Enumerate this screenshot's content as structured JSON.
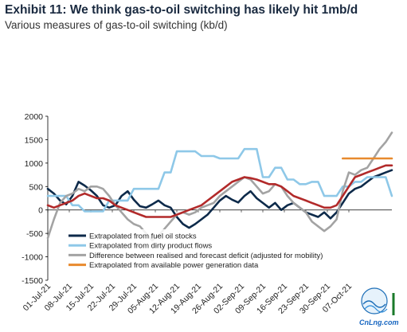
{
  "header": {
    "title": "Exhibit 11: We think gas-to-oil switching has likely hit 1mb/d",
    "subtitle": "Various measures of gas-to-oil switching (kb/d)"
  },
  "watermark": {
    "text": "CnLng.com"
  },
  "colors": {
    "fuel_oil": "#0d2a4a",
    "dirty_product": "#8ec8e8",
    "difference": "#a3a3a3",
    "deficit_red": "#b22a2a",
    "power_gen": "#e88a2e"
  },
  "chart_data": {
    "type": "line",
    "title": "Exhibit 11: We think gas-to-oil switching has likely hit 1mb/d",
    "subtitle": "Various measures of gas-to-oil switching (kb/d)",
    "ylim": [
      -1500,
      2000
    ],
    "yticks": [
      -1500,
      -1000,
      -500,
      0,
      500,
      1000,
      1500,
      2000
    ],
    "xcount": 95,
    "xtick_labels": [
      "01-Jul-21",
      "08-Jul-21",
      "15-Jul-21",
      "22-Jul-21",
      "29-Jul-21",
      "05-Aug-21",
      "12-Aug-21",
      "19-Aug-21",
      "26-Aug-21",
      "02-Sep-21",
      "09-Sep-21",
      "16-Sep-21",
      "23-Sep-21",
      "30-Sep-21",
      "07-Oct-21"
    ],
    "xtick_positions": [
      0,
      7,
      14,
      21,
      28,
      35,
      42,
      49,
      56,
      63,
      70,
      77,
      84,
      91,
      98
    ],
    "series": [
      {
        "name": "Extrapolated from fuel oil stocks",
        "color": "#0d2a4a",
        "points": [
          [
            0,
            450
          ],
          [
            2,
            350
          ],
          [
            4,
            200
          ],
          [
            6,
            120
          ],
          [
            8,
            300
          ],
          [
            10,
            600
          ],
          [
            12,
            520
          ],
          [
            14,
            420
          ],
          [
            16,
            300
          ],
          [
            18,
            100
          ],
          [
            20,
            50
          ],
          [
            22,
            100
          ],
          [
            24,
            300
          ],
          [
            26,
            400
          ],
          [
            28,
            220
          ],
          [
            30,
            80
          ],
          [
            32,
            50
          ],
          [
            34,
            120
          ],
          [
            36,
            200
          ],
          [
            38,
            100
          ],
          [
            40,
            50
          ],
          [
            42,
            -150
          ],
          [
            44,
            -300
          ],
          [
            46,
            -380
          ],
          [
            48,
            -300
          ],
          [
            50,
            -200
          ],
          [
            52,
            -100
          ],
          [
            54,
            50
          ],
          [
            56,
            200
          ],
          [
            58,
            300
          ],
          [
            60,
            220
          ],
          [
            62,
            160
          ],
          [
            64,
            300
          ],
          [
            66,
            400
          ],
          [
            68,
            250
          ],
          [
            70,
            150
          ],
          [
            72,
            50
          ],
          [
            74,
            150
          ],
          [
            76,
            0
          ],
          [
            78,
            100
          ],
          [
            80,
            150
          ],
          [
            82,
            50
          ],
          [
            84,
            -50
          ],
          [
            86,
            -100
          ],
          [
            88,
            -150
          ],
          [
            90,
            -50
          ],
          [
            92,
            -180
          ],
          [
            94,
            -50
          ],
          [
            96,
            150
          ],
          [
            98,
            350
          ],
          [
            100,
            450
          ],
          [
            102,
            500
          ],
          [
            104,
            600
          ],
          [
            106,
            700
          ],
          [
            108,
            750
          ],
          [
            110,
            800
          ],
          [
            112,
            850
          ]
        ]
      },
      {
        "name": "Extrapolated from dirty product flows",
        "color": "#8ec8e8",
        "points": [
          [
            0,
            300
          ],
          [
            6,
            300
          ],
          [
            8,
            100
          ],
          [
            10,
            100
          ],
          [
            12,
            -30
          ],
          [
            18,
            -30
          ],
          [
            20,
            200
          ],
          [
            26,
            200
          ],
          [
            28,
            450
          ],
          [
            36,
            450
          ],
          [
            38,
            800
          ],
          [
            40,
            800
          ],
          [
            42,
            1250
          ],
          [
            48,
            1250
          ],
          [
            50,
            1150
          ],
          [
            54,
            1150
          ],
          [
            56,
            1100
          ],
          [
            62,
            1100
          ],
          [
            64,
            1300
          ],
          [
            68,
            1300
          ],
          [
            70,
            700
          ],
          [
            72,
            700
          ],
          [
            74,
            900
          ],
          [
            76,
            900
          ],
          [
            78,
            650
          ],
          [
            80,
            650
          ],
          [
            82,
            550
          ],
          [
            84,
            550
          ],
          [
            86,
            600
          ],
          [
            88,
            600
          ],
          [
            90,
            300
          ],
          [
            94,
            300
          ],
          [
            96,
            500
          ],
          [
            98,
            500
          ],
          [
            100,
            600
          ],
          [
            102,
            600
          ],
          [
            104,
            700
          ],
          [
            110,
            700
          ],
          [
            112,
            300
          ]
        ]
      },
      {
        "name": "Difference between realised and forecast deficit (adjusted for mobility)",
        "color": "#a3a3a3",
        "points": [
          [
            0,
            -600
          ],
          [
            2,
            -200
          ],
          [
            4,
            150
          ],
          [
            6,
            300
          ],
          [
            8,
            350
          ],
          [
            10,
            450
          ],
          [
            12,
            400
          ],
          [
            14,
            500
          ],
          [
            16,
            500
          ],
          [
            18,
            450
          ],
          [
            20,
            300
          ],
          [
            22,
            100
          ],
          [
            24,
            -50
          ],
          [
            26,
            -200
          ],
          [
            28,
            -300
          ],
          [
            30,
            -350
          ],
          [
            32,
            -500
          ],
          [
            34,
            -650
          ],
          [
            36,
            -550
          ],
          [
            38,
            -400
          ],
          [
            40,
            -250
          ],
          [
            42,
            -100
          ],
          [
            44,
            -50
          ],
          [
            46,
            -100
          ],
          [
            48,
            -50
          ],
          [
            50,
            50
          ],
          [
            52,
            100
          ],
          [
            54,
            150
          ],
          [
            56,
            300
          ],
          [
            58,
            400
          ],
          [
            60,
            500
          ],
          [
            62,
            600
          ],
          [
            64,
            700
          ],
          [
            66,
            650
          ],
          [
            68,
            500
          ],
          [
            70,
            350
          ],
          [
            72,
            400
          ],
          [
            74,
            550
          ],
          [
            76,
            500
          ],
          [
            78,
            300
          ],
          [
            80,
            150
          ],
          [
            82,
            50
          ],
          [
            84,
            -50
          ],
          [
            86,
            -250
          ],
          [
            88,
            -350
          ],
          [
            90,
            -450
          ],
          [
            92,
            -350
          ],
          [
            94,
            -200
          ],
          [
            96,
            400
          ],
          [
            98,
            800
          ],
          [
            100,
            750
          ],
          [
            102,
            850
          ],
          [
            104,
            900
          ],
          [
            106,
            1100
          ],
          [
            108,
            1300
          ],
          [
            110,
            1450
          ],
          [
            112,
            1650
          ]
        ]
      },
      {
        "name": "Extrapolated from available power generation data",
        "color": "#e88a2e",
        "points": [
          [
            96,
            1100
          ],
          [
            112,
            1100
          ]
        ]
      },
      {
        "color": "#b22a2a",
        "points": [
          [
            0,
            100
          ],
          [
            2,
            50
          ],
          [
            4,
            100
          ],
          [
            6,
            150
          ],
          [
            8,
            200
          ],
          [
            10,
            300
          ],
          [
            12,
            350
          ],
          [
            14,
            300
          ],
          [
            16,
            250
          ],
          [
            18,
            250
          ],
          [
            20,
            200
          ],
          [
            22,
            100
          ],
          [
            24,
            50
          ],
          [
            26,
            0
          ],
          [
            28,
            -50
          ],
          [
            30,
            -100
          ],
          [
            32,
            -150
          ],
          [
            34,
            -150
          ],
          [
            36,
            -150
          ],
          [
            38,
            -150
          ],
          [
            40,
            -150
          ],
          [
            42,
            -100
          ],
          [
            44,
            -50
          ],
          [
            46,
            0
          ],
          [
            48,
            50
          ],
          [
            50,
            100
          ],
          [
            52,
            200
          ],
          [
            54,
            300
          ],
          [
            56,
            400
          ],
          [
            58,
            500
          ],
          [
            60,
            600
          ],
          [
            62,
            650
          ],
          [
            64,
            700
          ],
          [
            66,
            680
          ],
          [
            68,
            650
          ],
          [
            70,
            600
          ],
          [
            72,
            550
          ],
          [
            74,
            550
          ],
          [
            76,
            500
          ],
          [
            78,
            400
          ],
          [
            80,
            300
          ],
          [
            82,
            250
          ],
          [
            84,
            200
          ],
          [
            86,
            150
          ],
          [
            88,
            100
          ],
          [
            90,
            50
          ],
          [
            92,
            50
          ],
          [
            94,
            100
          ],
          [
            96,
            300
          ],
          [
            98,
            500
          ],
          [
            100,
            700
          ],
          [
            102,
            750
          ],
          [
            104,
            800
          ],
          [
            106,
            850
          ],
          [
            108,
            900
          ],
          [
            110,
            950
          ],
          [
            112,
            950
          ]
        ]
      }
    ],
    "legend": [
      "Extrapolated from fuel oil stocks",
      "Extrapolated from dirty product flows",
      "Difference between realised and forecast deficit (adjusted for mobility)",
      "Extrapolated from available power generation data"
    ]
  }
}
